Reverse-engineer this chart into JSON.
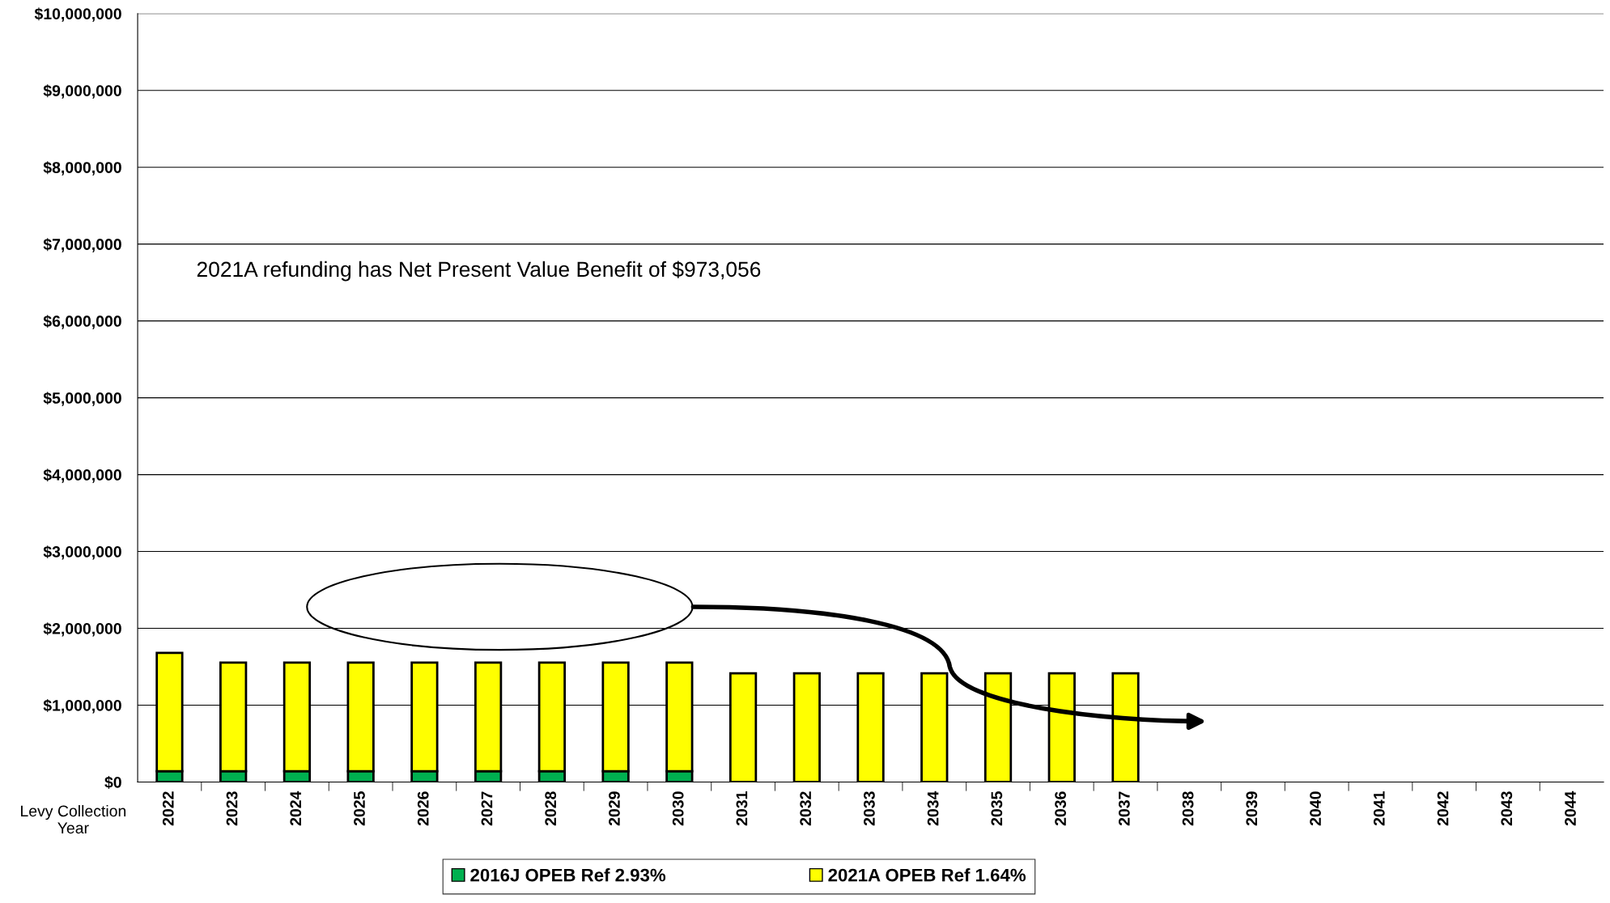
{
  "chart_data": {
    "type": "bar",
    "stacked": true,
    "categories": [
      "2022",
      "2023",
      "2024",
      "2025",
      "2026",
      "2027",
      "2028",
      "2029",
      "2030",
      "2031",
      "2032",
      "2033",
      "2034",
      "2035",
      "2036",
      "2037",
      "2038",
      "2039",
      "2040",
      "2041",
      "2042",
      "2043",
      "2044"
    ],
    "series": [
      {
        "name": "2016J OPEB Ref 2.93%",
        "color": "#00b050",
        "values": [
          140000,
          140000,
          140000,
          140000,
          140000,
          140000,
          140000,
          140000,
          140000,
          null,
          null,
          null,
          null,
          null,
          null,
          null,
          null,
          null,
          null,
          null,
          null,
          null,
          null
        ]
      },
      {
        "name": "2021A OPEB Ref 1.64%",
        "color": "#ffff00",
        "values": [
          1540000,
          1415000,
          1415000,
          1415000,
          1415000,
          1415000,
          1415000,
          1415000,
          1415000,
          1415000,
          1415000,
          1415000,
          1415000,
          1415000,
          1415000,
          1415000,
          null,
          null,
          null,
          null,
          null,
          null,
          null
        ]
      }
    ],
    "xlabel": "Levy Collection Year",
    "ylim": [
      0,
      10000000
    ],
    "yticks": [
      {
        "value": 0,
        "label": "$0"
      },
      {
        "value": 1000000,
        "label": "$1,000,000"
      },
      {
        "value": 2000000,
        "label": "$2,000,000"
      },
      {
        "value": 3000000,
        "label": "$3,000,000"
      },
      {
        "value": 4000000,
        "label": "$4,000,000"
      },
      {
        "value": 5000000,
        "label": "$5,000,000"
      },
      {
        "value": 6000000,
        "label": "$6,000,000"
      },
      {
        "value": 7000000,
        "label": "$7,000,000"
      },
      {
        "value": 8000000,
        "label": "$8,000,000"
      },
      {
        "value": 9000000,
        "label": "$9,000,000"
      },
      {
        "value": 10000000,
        "label": "$10,000,000"
      }
    ],
    "grid": "y",
    "legend": "bottom",
    "annotations": [
      "2021A refunding has Net Present Value Benefit of $973,056"
    ]
  }
}
